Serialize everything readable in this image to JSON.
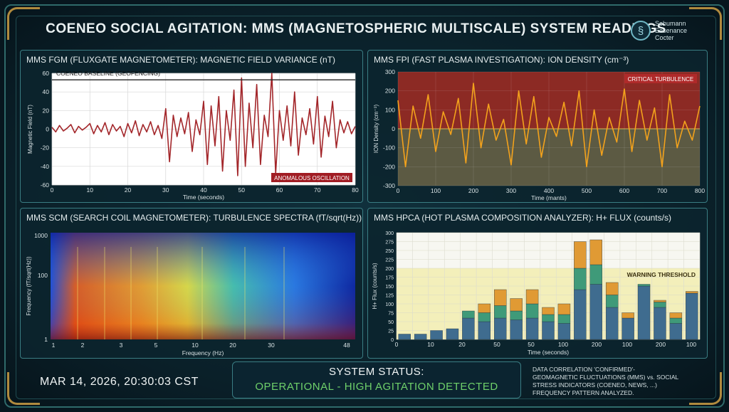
{
  "header": {
    "title": "COENEO SOCIAL AGITATION: MMS (MAGNETOSPHERIC MULTISCALE) SYSTEM READINGS",
    "logo_lines": [
      "Sehumann",
      "Eesenance",
      "Cocter"
    ],
    "logo_icon": "spiral-seal-icon"
  },
  "panels": {
    "fgm": {
      "title": "MMS FGM (FLUXGATE MAGNETOMETER): MAGNETIC FIELD VARIANCE (nT)"
    },
    "fpi": {
      "title": "MMS FPI (FAST PLASMA INVESTIGATION): ION DENSITY (cm⁻³)"
    },
    "scm": {
      "title": "MMS SCM (SEARCH COIL MAGNETOMETER): TURBULENCE SPECTRA (fT/sqrt(Hz))"
    },
    "hpca": {
      "title": "MMS HPCA (HOT PLASMA COMPOSITION ANALYZER): H+ FLUX (counts/s)"
    }
  },
  "footer": {
    "datetime": "MAR 14, 2026, 20:30:03 CST",
    "status_label": "SYSTEM STATUS:",
    "status_value": "OPERATIONAL - HIGH AGITATION DETECTED",
    "note_lines": [
      "DATA CORRELATION 'CONFIRMED'-",
      "GEOMAGNETIC FLUCTUATIONS (MMS) vs. SOCIAL",
      "STRESS INDICATORS (COENEO, NEWS, ...)",
      "FREQUENCY PATTERN ANALYZED."
    ]
  },
  "colors": {
    "line_red": "#a3262a",
    "line_orange": "#f3a21c",
    "bar_blue": "#3f6c8f",
    "bar_green": "#3f9a79",
    "bar_orange": "#e09a34",
    "status_green": "#6fd06a"
  },
  "chart_data": [
    {
      "type": "line",
      "title": "MMS FGM (FLUXGATE MAGNETOMETER): MAGNETIC FIELD VARIANCE (nT)",
      "xlabel": "Time (seconds)",
      "ylabel": "Magnetic Field (nT)",
      "xlim": [
        0,
        80
      ],
      "ylim": [
        -60,
        60
      ],
      "xticks": [
        0,
        10,
        20,
        30,
        40,
        50,
        60,
        70,
        80
      ],
      "yticks": [
        -60,
        -40,
        -20,
        0,
        20,
        40,
        60
      ],
      "grid": true,
      "baseline": {
        "label": "COENEO BASELINE (GEOFENCING)",
        "value": 53
      },
      "annotation": "ANOMALOUS OSCILLATION",
      "series": [
        {
          "x": [
            0,
            1,
            2,
            3,
            4,
            5,
            6,
            7,
            8,
            9,
            10,
            11,
            12,
            13,
            14,
            15,
            16,
            17,
            18,
            19,
            20,
            21,
            22,
            23,
            24,
            25,
            26,
            27,
            28,
            29,
            30,
            31,
            32,
            33,
            34,
            35,
            36,
            37,
            38,
            39,
            40,
            41,
            42,
            43,
            44,
            45,
            46,
            47,
            48,
            49,
            50,
            51,
            52,
            53,
            54,
            55,
            56,
            57,
            58,
            59,
            60,
            61,
            62,
            63,
            64,
            65,
            66,
            67,
            68,
            69,
            70,
            71,
            72,
            73,
            74,
            75,
            76,
            77,
            78,
            79,
            80
          ],
          "y": [
            2,
            -3,
            4,
            -2,
            1,
            5,
            -4,
            3,
            -1,
            2,
            6,
            -5,
            4,
            -3,
            7,
            -6,
            5,
            -2,
            3,
            -8,
            6,
            -4,
            9,
            -7,
            5,
            -3,
            8,
            -6,
            4,
            -10,
            22,
            -35,
            15,
            -8,
            12,
            -5,
            18,
            -24,
            10,
            -6,
            30,
            -38,
            25,
            -18,
            35,
            -45,
            20,
            -12,
            42,
            -50,
            55,
            -40,
            28,
            -20,
            48,
            -38,
            15,
            -8,
            60,
            -48,
            20,
            -12,
            25,
            -18,
            40,
            -28,
            12,
            -6,
            22,
            -16,
            35,
            -30,
            14,
            -8,
            30,
            -20,
            10,
            -4,
            8,
            -5,
            3
          ]
        }
      ]
    },
    {
      "type": "line",
      "title": "MMS FPI (FAST PLASMA INVESTIGATION): ION DENSITY (cm⁻³)",
      "xlabel": "Time (mants)",
      "ylabel": "ION Density (cm⁻³)",
      "xlim": [
        0,
        800
      ],
      "ylim": [
        -300,
        300
      ],
      "xticks": [
        0,
        100,
        200,
        300,
        400,
        500,
        600,
        700,
        800
      ],
      "yticks": [
        -300,
        -200,
        -100,
        0,
        100,
        200,
        300
      ],
      "grid": true,
      "annotation": "CRITICAL TURBULENCE",
      "series": [
        {
          "x": [
            0,
            20,
            40,
            60,
            80,
            100,
            120,
            140,
            160,
            180,
            200,
            220,
            240,
            260,
            280,
            300,
            320,
            340,
            360,
            380,
            400,
            420,
            440,
            460,
            480,
            500,
            520,
            540,
            560,
            580,
            600,
            620,
            640,
            660,
            680,
            700,
            720,
            740,
            760,
            780,
            800
          ],
          "y": [
            150,
            -200,
            120,
            -50,
            180,
            -120,
            90,
            -30,
            160,
            -180,
            240,
            -100,
            130,
            -60,
            50,
            -190,
            200,
            -80,
            170,
            -150,
            60,
            -40,
            140,
            -90,
            200,
            -200,
            100,
            -140,
            60,
            -70,
            210,
            -120,
            150,
            -60,
            110,
            -200,
            180,
            -100,
            40,
            -60,
            120
          ]
        }
      ]
    },
    {
      "type": "heatmap",
      "title": "MMS SCM (SEARCH COIL MAGNETOMETER): TURBULENCE SPECTRA (fT/sqrt(Hz))",
      "xlabel": "Frequency (Hz)",
      "ylabel": "Frequency (fT/sqrt(Hz))",
      "xticks": [
        1,
        2,
        3,
        5,
        10,
        20,
        30,
        48
      ],
      "yticks": [
        1,
        100,
        1000
      ],
      "yscale": "log"
    },
    {
      "type": "bar",
      "title": "MMS HPCA (HOT PLASMA COMPOSITION ANALYZER): H+ FLUX (counts/s)",
      "xlabel": "Time (seconds)",
      "ylabel": "H+ Flux (counts/s)",
      "ylim": [
        0,
        300
      ],
      "yticks": [
        0,
        25,
        50,
        75,
        100,
        125,
        150,
        175,
        200,
        225,
        250,
        275,
        300
      ],
      "xticks": [
        "0",
        "10",
        "20",
        "50",
        "50",
        "100",
        "200",
        "100",
        "200",
        "100",
        "200"
      ],
      "annotation": "WARNING THRESHOLD",
      "threshold": 200,
      "series": [
        {
          "name": "",
          "values": [
            15,
            15,
            25,
            30,
            60,
            50,
            60,
            55,
            60,
            50,
            45,
            140,
            155,
            90,
            60,
            150,
            90,
            45,
            130
          ]
        },
        {
          "name": "",
          "values": [
            0,
            0,
            0,
            0,
            20,
            25,
            35,
            25,
            40,
            20,
            25,
            60,
            55,
            35,
            0,
            5,
            15,
            15,
            0
          ]
        },
        {
          "name": "",
          "values": [
            0,
            0,
            0,
            0,
            0,
            25,
            45,
            35,
            40,
            20,
            30,
            75,
            70,
            35,
            15,
            0,
            5,
            15,
            5
          ]
        }
      ]
    }
  ]
}
